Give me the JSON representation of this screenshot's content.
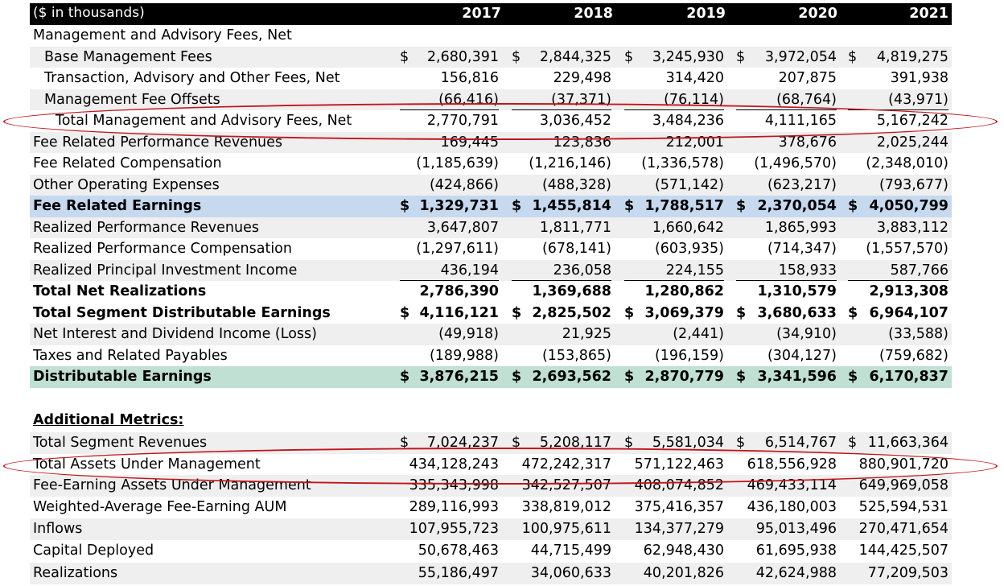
{
  "header": {
    "label": "($ in thousands)",
    "years": [
      "2017",
      "2018",
      "2019",
      "2020",
      "2021"
    ]
  },
  "rows": [
    {
      "label": "Management and Advisory Fees, Net",
      "values": [
        "",
        "",
        "",
        "",
        ""
      ],
      "dollar": false
    },
    {
      "label": "Base Management Fees",
      "values": [
        "2,680,391",
        "2,844,325",
        "3,245,930",
        "3,972,054",
        "4,819,275"
      ],
      "dollar": true
    },
    {
      "label": "Transaction, Advisory and Other Fees, Net",
      "values": [
        "156,816",
        "229,498",
        "314,420",
        "207,875",
        "391,938"
      ],
      "dollar": false
    },
    {
      "label": "Management Fee Offsets",
      "values": [
        "(66,416)",
        "(37,371)",
        "(76,114)",
        "(68,764)",
        "(43,971)"
      ],
      "dollar": false
    },
    {
      "label": "Total Management and Advisory Fees, Net",
      "values": [
        "2,770,791",
        "3,036,452",
        "3,484,236",
        "4,111,165",
        "5,167,242"
      ],
      "dollar": false
    },
    {
      "label": "Fee Related Performance Revenues",
      "values": [
        "169,445",
        "123,836",
        "212,001",
        "378,676",
        "2,025,244"
      ],
      "dollar": false
    },
    {
      "label": "Fee Related Compensation",
      "values": [
        "(1,185,639)",
        "(1,216,146)",
        "(1,336,578)",
        "(1,496,570)",
        "(2,348,010)"
      ],
      "dollar": false
    },
    {
      "label": "Other Operating Expenses",
      "values": [
        "(424,866)",
        "(488,328)",
        "(571,142)",
        "(623,217)",
        "(793,677)"
      ],
      "dollar": false
    },
    {
      "label": "Fee Related Earnings",
      "values": [
        "1,329,731",
        "1,455,814",
        "1,788,517",
        "2,370,054",
        "4,050,799"
      ],
      "dollar": true
    },
    {
      "label": "Realized Performance Revenues",
      "values": [
        "3,647,807",
        "1,811,771",
        "1,660,642",
        "1,865,993",
        "3,883,112"
      ],
      "dollar": false
    },
    {
      "label": "Realized Performance Compensation",
      "values": [
        "(1,297,611)",
        "(678,141)",
        "(603,935)",
        "(714,347)",
        "(1,557,570)"
      ],
      "dollar": false
    },
    {
      "label": "Realized Principal Investment Income",
      "values": [
        "436,194",
        "236,058",
        "224,155",
        "158,933",
        "587,766"
      ],
      "dollar": false
    },
    {
      "label": "Total Net Realizations",
      "values": [
        "2,786,390",
        "1,369,688",
        "1,280,862",
        "1,310,579",
        "2,913,308"
      ],
      "dollar": false
    },
    {
      "label": "Total Segment Distributable Earnings",
      "values": [
        "4,116,121",
        "2,825,502",
        "3,069,379",
        "3,680,633",
        "6,964,107"
      ],
      "dollar": true
    },
    {
      "label": "Net Interest and Dividend Income (Loss)",
      "values": [
        "(49,918)",
        "21,925",
        "(2,441)",
        "(34,910)",
        "(33,588)"
      ],
      "dollar": false
    },
    {
      "label": "Taxes and Related Payables",
      "values": [
        "(189,988)",
        "(153,865)",
        "(196,159)",
        "(304,127)",
        "(759,682)"
      ],
      "dollar": false
    },
    {
      "label": "Distributable Earnings",
      "values": [
        "3,876,215",
        "2,693,562",
        "2,870,779",
        "3,341,596",
        "6,170,837"
      ],
      "dollar": true
    }
  ],
  "additional": {
    "title": "Additional Metrics:",
    "rows": [
      {
        "label": "Total Segment Revenues",
        "values": [
          "7,024,237",
          "5,208,117",
          "5,581,034",
          "6,514,767",
          "11,663,364"
        ],
        "dollar": true
      },
      {
        "label": "Total Assets Under Management",
        "values": [
          "434,128,243",
          "472,242,317",
          "571,122,463",
          "618,556,928",
          "880,901,720"
        ],
        "dollar": false
      },
      {
        "label": "Fee-Earning Assets Under Management",
        "values": [
          "335,343,998",
          "342,527,507",
          "408,074,852",
          "469,433,114",
          "649,969,058"
        ],
        "dollar": false
      },
      {
        "label": "Weighted-Average Fee-Earning AUM",
        "values": [
          "289,116,993",
          "338,819,012",
          "375,416,357",
          "436,180,003",
          "525,594,531"
        ],
        "dollar": false
      },
      {
        "label": "Inflows",
        "values": [
          "107,955,723",
          "100,975,611",
          "134,377,279",
          "95,013,496",
          "270,471,654"
        ],
        "dollar": false
      },
      {
        "label": "Capital Deployed",
        "values": [
          "50,678,463",
          "44,715,499",
          "62,948,430",
          "61,695,938",
          "144,425,507"
        ],
        "dollar": false
      },
      {
        "label": "Realizations",
        "values": [
          "55,186,497",
          "34,060,633",
          "40,201,826",
          "42,624,988",
          "77,209,503"
        ],
        "dollar": false
      }
    ]
  },
  "dollar_sign": "$",
  "colors": {
    "header_bg": "#000000",
    "fee_related_earnings_bg": "#c6d9ef",
    "distributable_earnings_bg": "#bfe0d2",
    "stripe_bg": "#efefef",
    "highlight_ellipse": "#c0161b"
  }
}
